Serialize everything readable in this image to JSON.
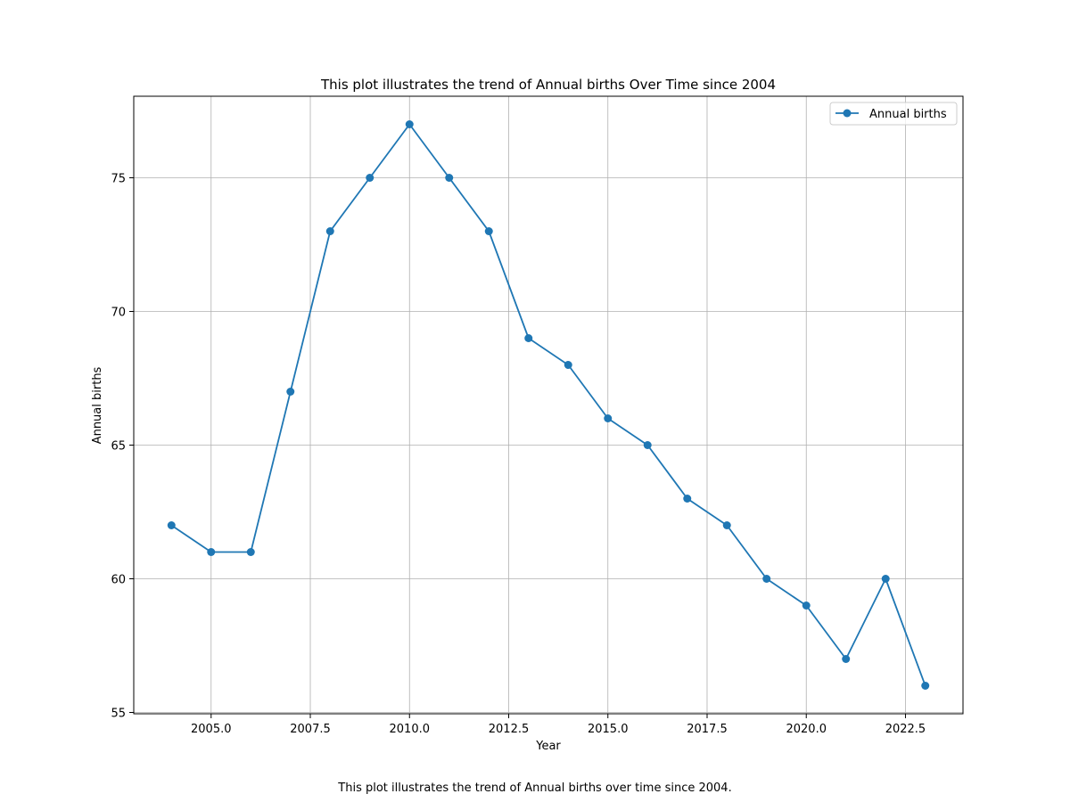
{
  "caption": "This plot illustrates the trend of Annual births over time since 2004.",
  "chart_data": {
    "type": "line",
    "title": "This plot illustrates the trend of Annual births Over Time since 2004",
    "xlabel": "Year",
    "ylabel": "Annual births",
    "xlim": [
      2003.05,
      2023.95
    ],
    "ylim": [
      54.95,
      78.05
    ],
    "xticks": [
      2005.0,
      2007.5,
      2010.0,
      2012.5,
      2015.0,
      2017.5,
      2020.0,
      2022.5
    ],
    "xtick_labels": [
      "2005.0",
      "2007.5",
      "2010.0",
      "2012.5",
      "2015.0",
      "2017.5",
      "2020.0",
      "2022.5"
    ],
    "yticks": [
      55,
      60,
      65,
      70,
      75
    ],
    "ytick_labels": [
      "55",
      "60",
      "65",
      "70",
      "75"
    ],
    "grid": true,
    "legend_position": "top-right",
    "series": [
      {
        "name": "Annual births",
        "color": "#1f77b4",
        "marker": "circle",
        "x": [
          2004,
          2005,
          2006,
          2007,
          2008,
          2009,
          2010,
          2011,
          2012,
          2013,
          2014,
          2015,
          2016,
          2017,
          2018,
          2019,
          2020,
          2021,
          2022,
          2023
        ],
        "y": [
          62,
          61,
          61,
          67,
          73,
          75,
          77,
          75,
          73,
          69,
          68,
          66,
          65,
          63,
          62,
          60,
          59,
          57,
          60,
          56
        ]
      }
    ]
  }
}
